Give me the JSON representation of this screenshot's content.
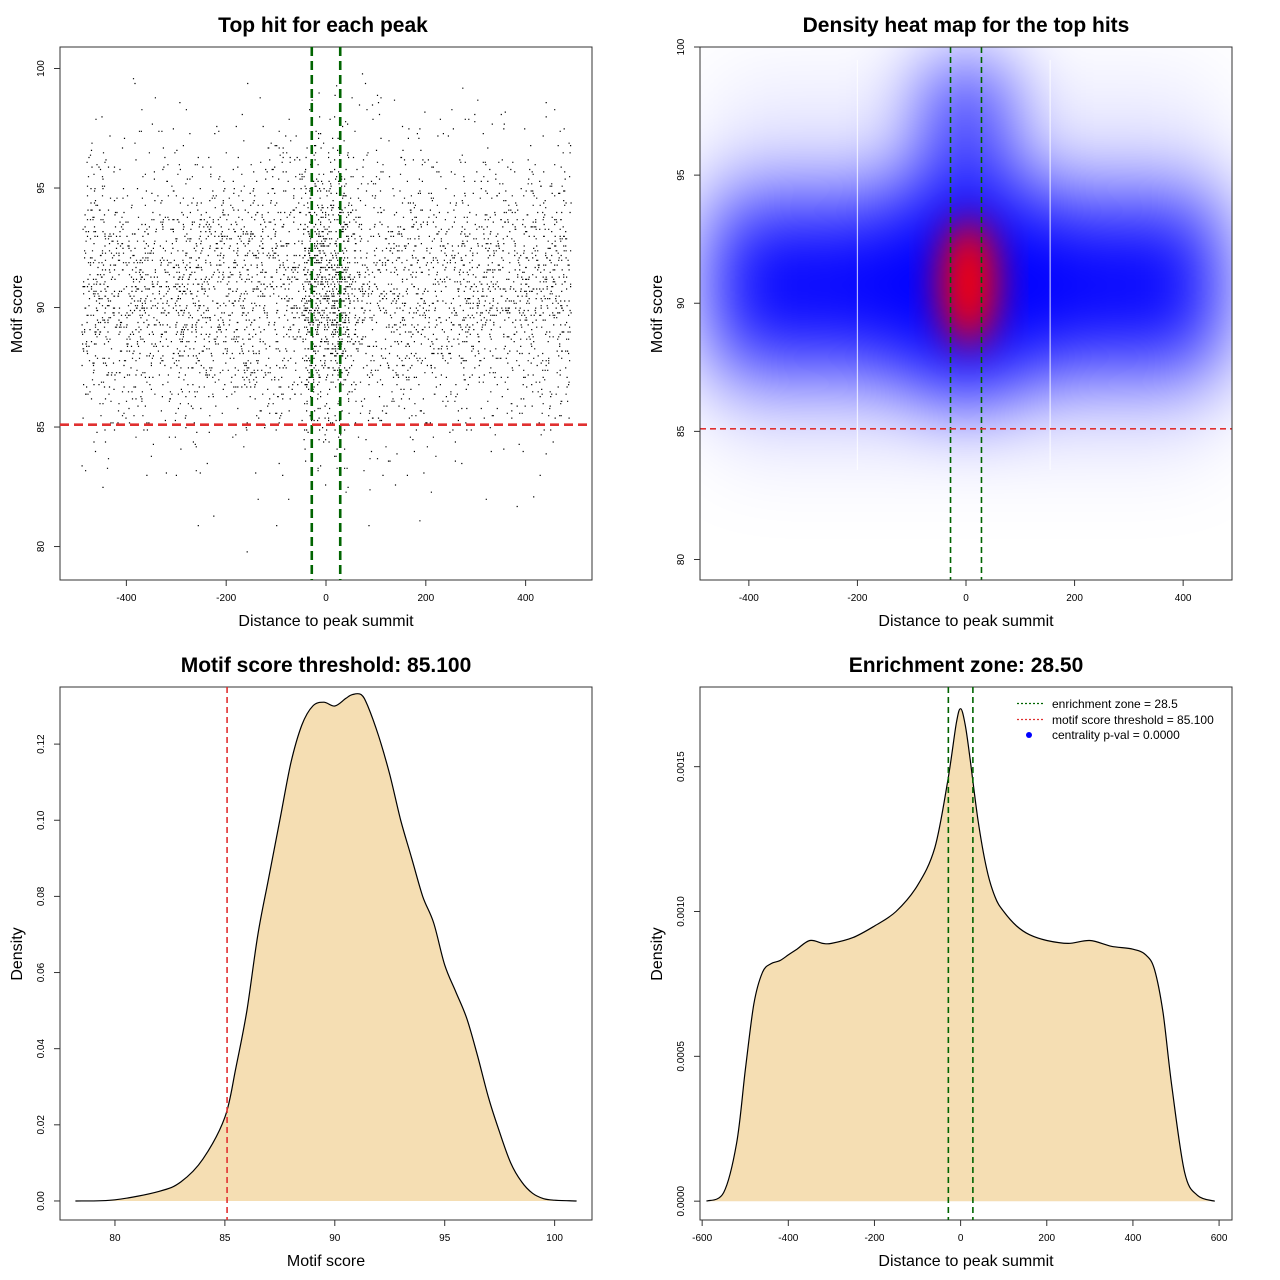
{
  "chart_data": [
    {
      "type": "scatter",
      "title": "Top hit for each peak",
      "xlabel": "Distance to peak summit",
      "ylabel": "Motif score",
      "xlim": [
        -533,
        533
      ],
      "ylim": [
        78.6,
        100.9
      ],
      "x_ticks": [
        -400,
        -200,
        0,
        200,
        400
      ],
      "y_ticks": [
        80,
        85,
        90,
        95,
        100
      ],
      "point_count_approx": 15000,
      "x_range_of_points": [
        -490,
        490
      ],
      "score_distribution": {
        "mean": 90.7,
        "sd": 2.9
      },
      "center_enrichment_x": [
        -28.5,
        28.5
      ],
      "reference_lines": [
        {
          "orientation": "vertical",
          "value": -28.5,
          "color": "#006400",
          "style": "dashed"
        },
        {
          "orientation": "vertical",
          "value": 28.5,
          "color": "#006400",
          "style": "dashed"
        },
        {
          "orientation": "horizontal",
          "value": 85.1,
          "color": "#e03030",
          "style": "dashed"
        }
      ],
      "grid": false
    },
    {
      "type": "heatmap",
      "title": "Density heat map for the top hits",
      "xlabel": "Distance to peak summit",
      "ylabel": "Motif score",
      "xlim": [
        -490,
        490
      ],
      "ylim": [
        79.2,
        100.0
      ],
      "x_ticks": [
        -400,
        -200,
        0,
        200,
        400
      ],
      "y_ticks": [
        80,
        85,
        90,
        95,
        100
      ],
      "density_peak": {
        "x": 5,
        "y": 90.8
      },
      "color_scale": [
        "#ffffff",
        "#0000ff",
        "#ff0000"
      ],
      "reference_lines": [
        {
          "orientation": "vertical",
          "value": -28.5,
          "color": "#006400",
          "style": "dashed"
        },
        {
          "orientation": "vertical",
          "value": 28.5,
          "color": "#006400",
          "style": "dashed"
        },
        {
          "orientation": "horizontal",
          "value": 85.1,
          "color": "#e03030",
          "style": "dashed"
        }
      ],
      "grid": false
    },
    {
      "type": "area",
      "title": "Motif score threshold: 85.100",
      "xlabel": "Motif score",
      "ylabel": "Density",
      "xlim": [
        77.5,
        101.7
      ],
      "ylim": [
        -0.005,
        0.135
      ],
      "x_ticks": [
        80,
        85,
        90,
        95,
        100
      ],
      "y_ticks": [
        0.0,
        0.02,
        0.04,
        0.06,
        0.08,
        0.1,
        0.12
      ],
      "y_tick_labels": [
        "0.00",
        "0.02",
        "0.04",
        "0.06",
        "0.08",
        "0.10",
        "0.12"
      ],
      "x": [
        78.2,
        80,
        82,
        83,
        84,
        85,
        85.5,
        86,
        86.5,
        87,
        87.5,
        88,
        88.5,
        89,
        89.5,
        90,
        90.5,
        90.8,
        91.2,
        91.5,
        92,
        92.5,
        93,
        93.5,
        94,
        94.5,
        95,
        95.5,
        96,
        96.5,
        97,
        97.5,
        98,
        98.5,
        99,
        99.5,
        100,
        101
      ],
      "values": [
        0.0,
        0.0003,
        0.0025,
        0.005,
        0.011,
        0.022,
        0.035,
        0.05,
        0.07,
        0.085,
        0.1,
        0.115,
        0.125,
        0.13,
        0.131,
        0.13,
        0.132,
        0.133,
        0.133,
        0.13,
        0.122,
        0.112,
        0.1,
        0.09,
        0.08,
        0.073,
        0.062,
        0.055,
        0.048,
        0.038,
        0.027,
        0.018,
        0.01,
        0.005,
        0.002,
        0.0006,
        0.0002,
        0.0
      ],
      "fill": "#f5deb3",
      "reference_lines": [
        {
          "orientation": "vertical",
          "value": 85.1,
          "color": "#e03030",
          "style": "dashed"
        }
      ],
      "grid": false
    },
    {
      "type": "area",
      "title": "Enrichment zone: 28.50",
      "xlabel": "Distance to peak summit",
      "ylabel": "Density",
      "xlim": [
        -605,
        630
      ],
      "ylim": [
        -6.5e-05,
        0.001775
      ],
      "x_ticks": [
        -600,
        -400,
        -200,
        0,
        200,
        400,
        600
      ],
      "y_ticks": [
        0.0,
        0.0005,
        0.001,
        0.0015
      ],
      "y_tick_labels": [
        "0.0000",
        "0.0005",
        "0.0010",
        "0.0015"
      ],
      "x": [
        -590,
        -550,
        -520,
        -500,
        -480,
        -460,
        -440,
        -420,
        -400,
        -380,
        -350,
        -320,
        -300,
        -250,
        -200,
        -150,
        -100,
        -60,
        -30,
        -10,
        0,
        10,
        20,
        40,
        60,
        80,
        100,
        130,
        160,
        200,
        250,
        300,
        350,
        400,
        430,
        450,
        470,
        490,
        520,
        550,
        590
      ],
      "values": [
        0.0,
        3e-05,
        0.0002,
        0.00045,
        0.00068,
        0.00079,
        0.00082,
        0.00083,
        0.00085,
        0.00087,
        0.0009,
        0.00089,
        0.00089,
        0.00091,
        0.00095,
        0.001,
        0.00109,
        0.00122,
        0.00145,
        0.00165,
        0.0017,
        0.00165,
        0.00155,
        0.00132,
        0.00115,
        0.00105,
        0.001,
        0.00095,
        0.00092,
        0.0009,
        0.00089,
        0.0009,
        0.00088,
        0.00087,
        0.00085,
        0.0008,
        0.00065,
        0.0004,
        0.0001,
        2e-05,
        0.0
      ],
      "fill": "#f5deb3",
      "reference_lines": [
        {
          "orientation": "vertical",
          "value": -28.5,
          "color": "#006400",
          "style": "dashed"
        },
        {
          "orientation": "vertical",
          "value": 28.5,
          "color": "#006400",
          "style": "dashed"
        }
      ],
      "legend": {
        "position": "top-right",
        "entries": [
          {
            "label": "enrichment zone = 28.5",
            "color": "#006400",
            "symbol": "dotted-line"
          },
          {
            "label": "motif score threshold = 85.100",
            "color": "#e03030",
            "symbol": "dotted-line"
          },
          {
            "label": "centrality p-val = 0.0000",
            "color": "#0000ff",
            "symbol": "point"
          }
        ]
      },
      "grid": false
    }
  ]
}
